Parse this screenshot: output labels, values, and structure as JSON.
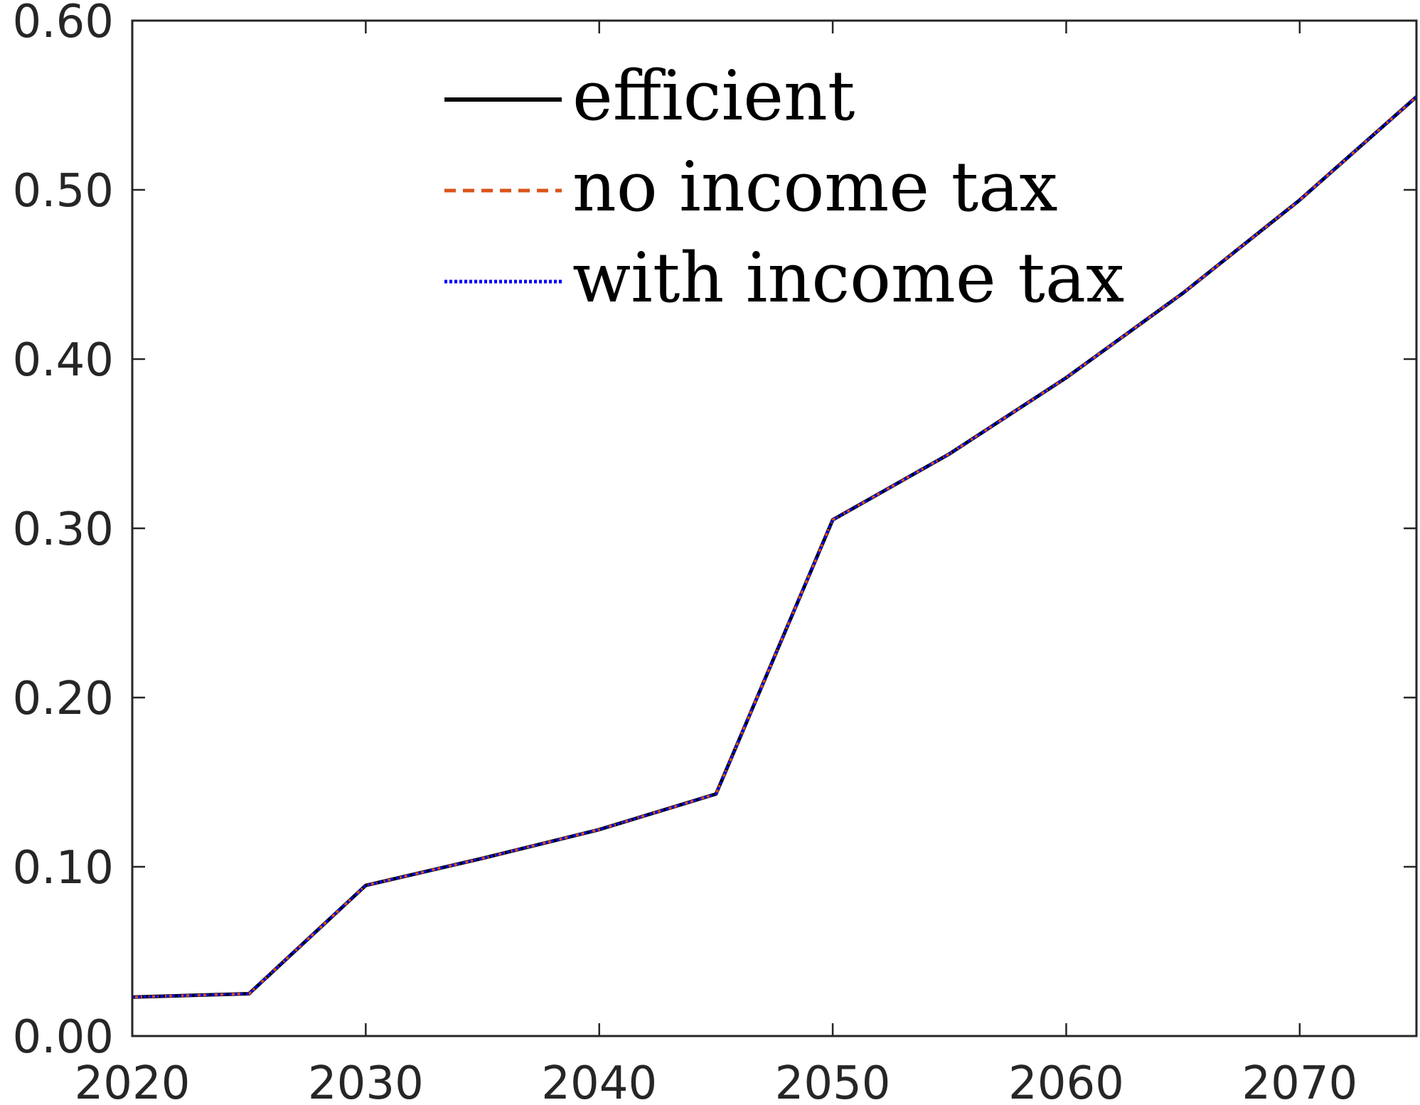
{
  "chart_data": {
    "type": "line",
    "title": "",
    "xlabel": "",
    "ylabel": "",
    "xlim": [
      2020,
      2075
    ],
    "ylim": [
      0,
      0.6
    ],
    "xticks": [
      "2020",
      "2030",
      "2040",
      "2050",
      "2060",
      "2070"
    ],
    "yticks": [
      "0.00",
      "0.10",
      "0.20",
      "0.30",
      "0.40",
      "0.50",
      "0.60"
    ],
    "grid": false,
    "legend_position": "top-center",
    "x": [
      2020,
      2025,
      2030,
      2035,
      2040,
      2045,
      2050,
      2055,
      2060,
      2065,
      2070,
      2075
    ],
    "series": [
      {
        "name": "efficient",
        "color": "#000000",
        "line_style": "solid",
        "values": [
          0.023,
          0.025,
          0.089,
          0.105,
          0.122,
          0.143,
          0.305,
          0.344,
          0.389,
          0.439,
          0.494,
          0.555
        ]
      },
      {
        "name": "no income tax",
        "color": "#D95319",
        "line_style": "dashed",
        "values": [
          0.023,
          0.025,
          0.089,
          0.105,
          0.122,
          0.143,
          0.305,
          0.344,
          0.389,
          0.439,
          0.494,
          0.555
        ]
      },
      {
        "name": "with income tax",
        "color": "#0000FF",
        "line_style": "dotted",
        "values": [
          0.023,
          0.025,
          0.089,
          0.105,
          0.122,
          0.143,
          0.305,
          0.344,
          0.389,
          0.439,
          0.494,
          0.555
        ]
      }
    ]
  }
}
